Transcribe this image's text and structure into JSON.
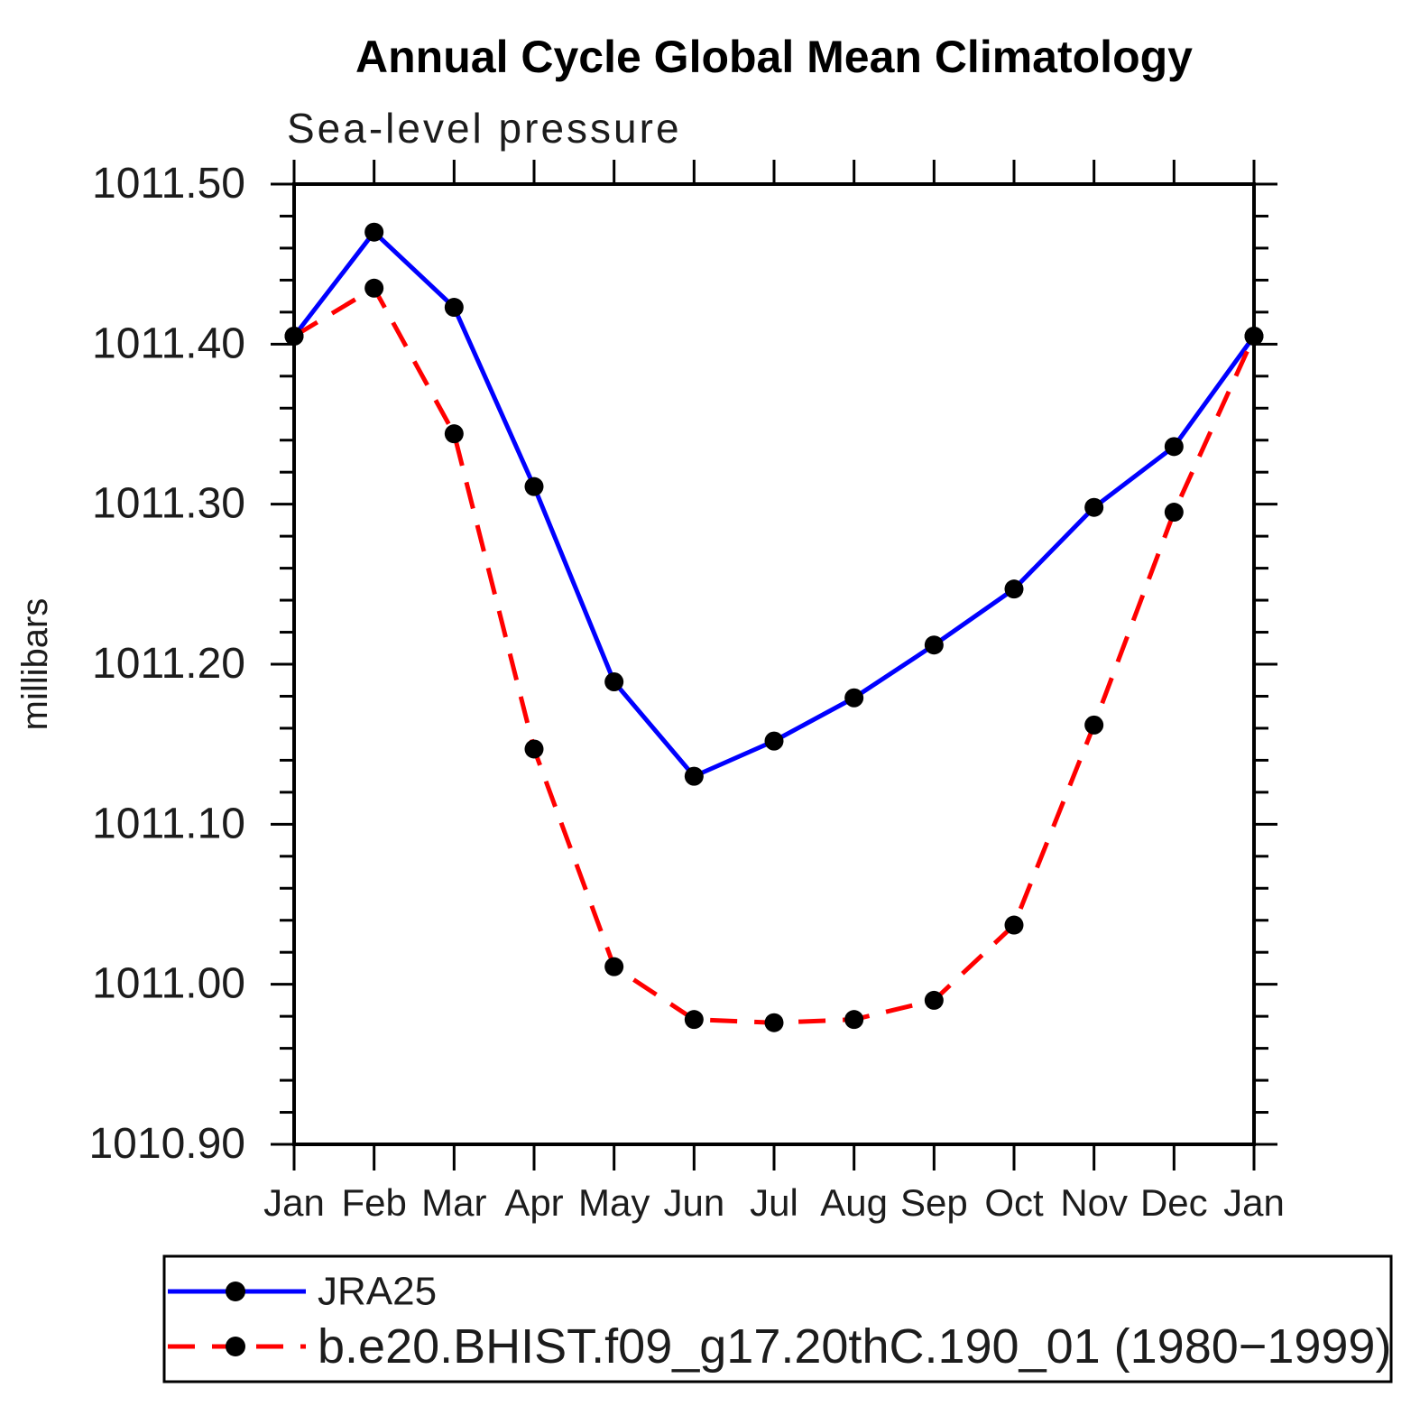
{
  "title": "Annual Cycle Global Mean Climatology",
  "subtitle": "Sea-level pressure",
  "ylabel": "millibars",
  "chart_data": {
    "type": "line",
    "x_categories": [
      "Jan",
      "Feb",
      "Mar",
      "Apr",
      "May",
      "Jun",
      "Jul",
      "Aug",
      "Sep",
      "Oct",
      "Nov",
      "Dec",
      "Jan"
    ],
    "ylim": [
      1010.9,
      1011.5
    ],
    "ytick_major_step": 0.1,
    "ytick_minor_step": 0.02,
    "ytick_labels": [
      "1011.50",
      "1011.40",
      "1011.30",
      "1011.20",
      "1011.10",
      "1011.00",
      "1010.90"
    ],
    "ytick_values": [
      1011.5,
      1011.4,
      1011.3,
      1011.2,
      1011.1,
      1011.0,
      1010.9
    ],
    "grid": "off",
    "legend_position": "bottom-left",
    "series": [
      {
        "name": "JRA25",
        "color": "#0000ff",
        "line_style": "solid",
        "marker": "filled-circle",
        "marker_color": "#000000",
        "values": [
          1011.405,
          1011.47,
          1011.423,
          1011.311,
          1011.189,
          1011.13,
          1011.152,
          1011.179,
          1011.212,
          1011.247,
          1011.298,
          1011.336,
          1011.405
        ]
      },
      {
        "name": "b.e20.BHIST.f09_g17.20thC.190_01 (1980−1999)",
        "color": "#ff0000",
        "line_style": "dashed",
        "marker": "filled-circle",
        "marker_color": "#000000",
        "values": [
          1011.405,
          1011.435,
          1011.344,
          1011.147,
          1011.011,
          1010.978,
          1010.976,
          1010.978,
          1010.99,
          1011.037,
          1011.162,
          1011.295,
          1011.405
        ]
      }
    ]
  },
  "colors": {
    "frame": "#000000",
    "background": "#ffffff",
    "text": "#1c1c1c"
  }
}
